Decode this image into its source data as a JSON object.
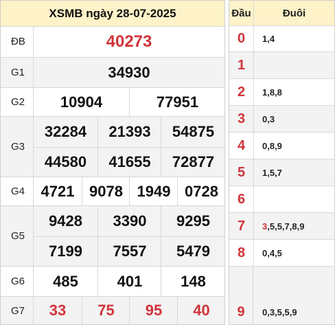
{
  "title": "XSMB ngày 28-07-2025",
  "prizes": {
    "db": {
      "label": "ĐB",
      "values": [
        "40273"
      ]
    },
    "g1": {
      "label": "G1",
      "values": [
        "34930"
      ]
    },
    "g2": {
      "label": "G2",
      "values": [
        "10904",
        "77951"
      ]
    },
    "g3": {
      "label": "G3",
      "values": [
        "32284",
        "21393",
        "54875",
        "44580",
        "41655",
        "72877"
      ]
    },
    "g4": {
      "label": "G4",
      "values": [
        "4721",
        "9078",
        "1949",
        "0728"
      ]
    },
    "g5": {
      "label": "G5",
      "values": [
        "9428",
        "3390",
        "9295",
        "7199",
        "7557",
        "5479"
      ]
    },
    "g6": {
      "label": "G6",
      "values": [
        "485",
        "401",
        "148"
      ]
    },
    "g7": {
      "label": "G7",
      "values": [
        "33",
        "75",
        "95",
        "40"
      ]
    }
  },
  "loto": {
    "header_dau": "Đầu",
    "header_duoi": "Đuôi",
    "rows": [
      {
        "dau": "0",
        "duoi_highlight": "",
        "duoi": "1,4"
      },
      {
        "dau": "1",
        "duoi_highlight": "",
        "duoi": ""
      },
      {
        "dau": "2",
        "duoi_highlight": "",
        "duoi": "1,8,8"
      },
      {
        "dau": "3",
        "duoi_highlight": "",
        "duoi": "0,3"
      },
      {
        "dau": "4",
        "duoi_highlight": "",
        "duoi": "0,8,9"
      },
      {
        "dau": "5",
        "duoi_highlight": "",
        "duoi": "1,5,7"
      },
      {
        "dau": "6",
        "duoi_highlight": "",
        "duoi": ""
      },
      {
        "dau": "7",
        "duoi_highlight": "3",
        "duoi": ",5,5,7,8,9"
      },
      {
        "dau": "8",
        "duoi_highlight": "",
        "duoi": "0,4,5"
      },
      {
        "dau": "9",
        "duoi_highlight": "",
        "duoi": "0,3,5,5,9"
      }
    ]
  },
  "colors": {
    "accent_red": "#d0343a",
    "header_bg": "#fdf2c8",
    "alt_row_bg": "#f3f3f3"
  }
}
